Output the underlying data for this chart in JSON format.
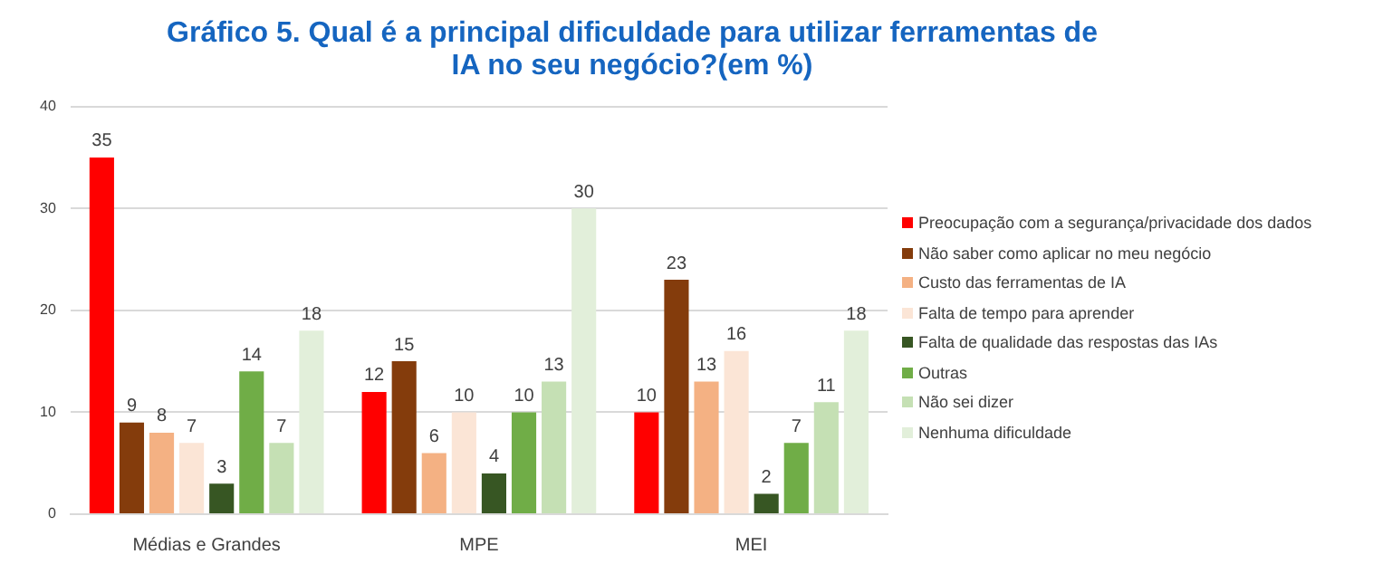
{
  "chart_data": {
    "type": "bar",
    "title": "Gráfico 5. Qual é a principal dificuldade para utilizar ferramentas de IA no seu negócio?(em %)",
    "categories": [
      "Médias e Grandes",
      "MPE",
      "MEI"
    ],
    "series": [
      {
        "name": "Preocupação com a segurança/privacidade dos dados",
        "color": "#ff0000",
        "values": [
          35,
          12,
          10
        ]
      },
      {
        "name": "Não saber como aplicar no meu negócio",
        "color": "#843c0c",
        "values": [
          9,
          15,
          23
        ]
      },
      {
        "name": "Custo das ferramentas de IA",
        "color": "#f4b183",
        "values": [
          8,
          6,
          13
        ]
      },
      {
        "name": "Falta de tempo para aprender",
        "color": "#fbe5d6",
        "values": [
          7,
          10,
          16
        ]
      },
      {
        "name": "Falta de qualidade das respostas das IAs",
        "color": "#375623",
        "values": [
          3,
          4,
          2
        ]
      },
      {
        "name": "Outras",
        "color": "#70ad47",
        "values": [
          14,
          10,
          7
        ]
      },
      {
        "name": "Não sei dizer",
        "color": "#c5e0b4",
        "values": [
          7,
          13,
          11
        ]
      },
      {
        "name": "Nenhuma dificuldade",
        "color": "#e2efda",
        "values": [
          18,
          30,
          18
        ]
      }
    ],
    "ylim": [
      0,
      40
    ],
    "yticks": [
      0,
      10,
      20,
      30,
      40
    ],
    "grid": "y",
    "legend": "right",
    "data_labels": true
  }
}
